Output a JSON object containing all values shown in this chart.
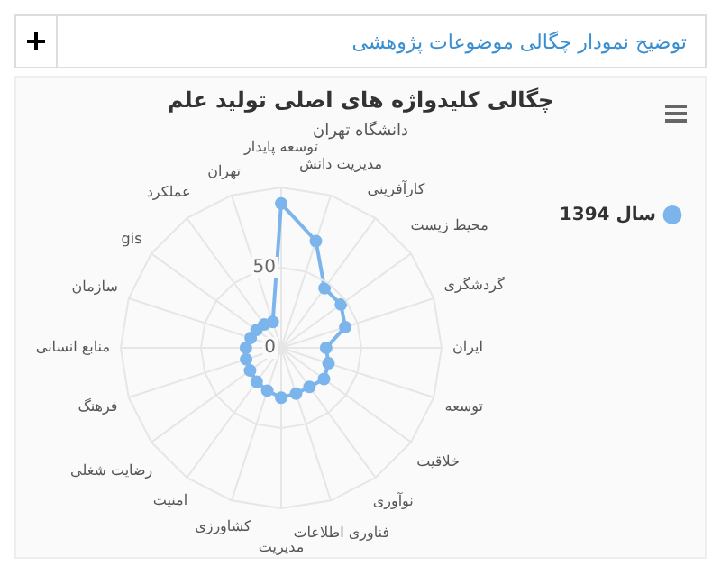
{
  "chart_data": {
    "type": "radar",
    "title": "چگالی کلیدواژه های اصلی تولید علم",
    "subtitle": "دانشگاه تهران",
    "annotations": [
      "توضیح نمودار چگالی موضوعات پژوهشی"
    ],
    "categories": [
      "توسعه پایدار",
      "مدیریت دانش",
      "کارآفرینی",
      "محیط زیست",
      "گردشگری",
      "ایران",
      "توسعه",
      "خلاقیت",
      "نوآوری",
      "فناوری اطلاعات",
      "مدیریت",
      "کشاورزی",
      "امنیت",
      "رضایت شغلی",
      "فرهنگ",
      "منابع انسانی",
      "سازمان",
      "gis",
      "عملکرد",
      "تهران"
    ],
    "series": [
      {
        "name": "سال 1394",
        "color": "#7cb5ec",
        "values": [
          90,
          70,
          46,
          46,
          42,
          28,
          31,
          33,
          30,
          30,
          31,
          28,
          26,
          24,
          23,
          22,
          20,
          19,
          18,
          17
        ]
      }
    ],
    "ylim": [
      0,
      100
    ],
    "yticks": [
      0,
      50
    ],
    "grid": true,
    "legend": "top right",
    "marker": "circle"
  }
}
